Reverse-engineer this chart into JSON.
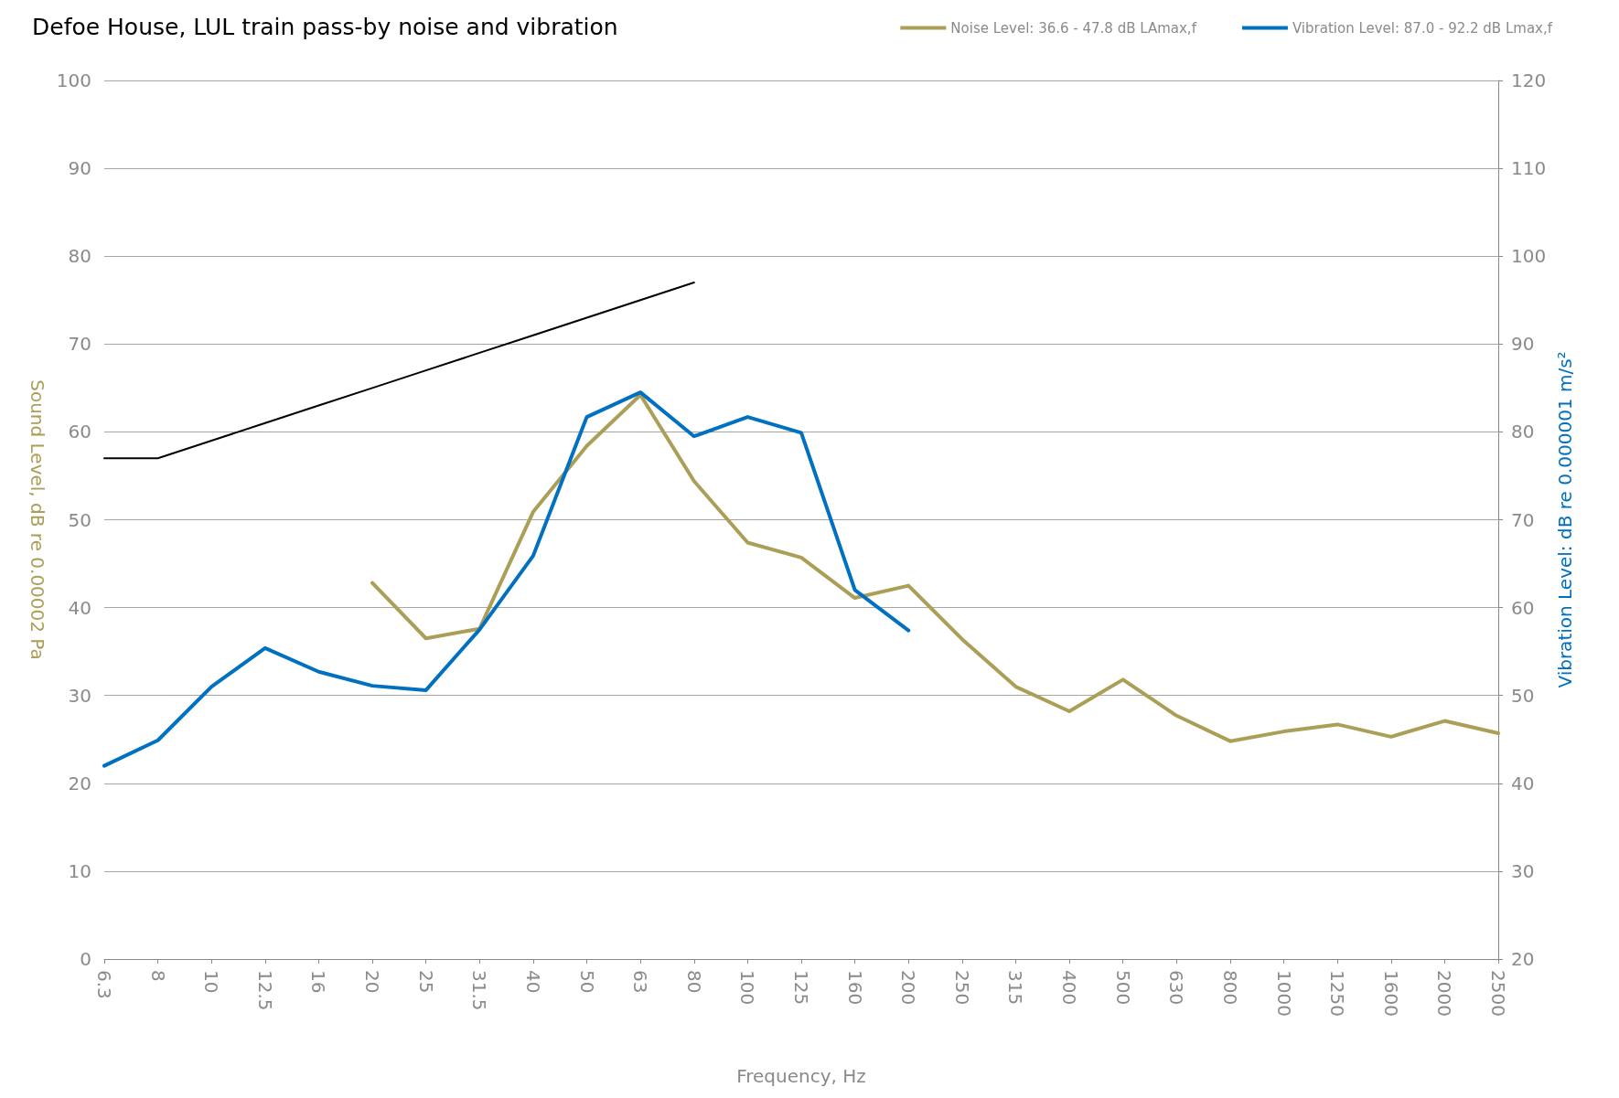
{
  "chart_data": {
    "type": "line",
    "title": "Defoe House, LUL train pass-by noise and vibration",
    "xlabel": "Frequency, Hz",
    "ylabel": "Sound Level, dB re 0.00002 Pa",
    "y2label": "Vibration Level: dB re 0.000001 m/s²",
    "categories": [
      "6.3",
      "8",
      "10",
      "12.5",
      "16",
      "20",
      "25",
      "31.5",
      "40",
      "50",
      "63",
      "80",
      "100",
      "125",
      "160",
      "200",
      "250",
      "315",
      "400",
      "500",
      "630",
      "800",
      "1000",
      "1250",
      "1600",
      "2000",
      "2500"
    ],
    "series": [
      {
        "name": "Noise Level: 36.6 - 47.8 dB LAmax,f",
        "color": "#ab9f58",
        "values": [
          null,
          null,
          null,
          null,
          null,
          42.8,
          36.5,
          37.6,
          50.9,
          58.4,
          64.2,
          54.4,
          47.4,
          45.7,
          41.1,
          42.5,
          36.4,
          31.0,
          28.2,
          31.8,
          27.7,
          24.8,
          25.9,
          26.7,
          25.3,
          27.1,
          25.7
        ]
      },
      {
        "name": "Vibration Level: 87.0 - 92.2 dB Lmax,f",
        "color": "#0070c0",
        "axis": "y2",
        "values": [
          42.0,
          44.9,
          51.0,
          55.4,
          52.7,
          51.1,
          50.6,
          57.5,
          65.9,
          81.7,
          84.5,
          79.5,
          81.7,
          79.9,
          62.0,
          57.4,
          null,
          null,
          null,
          null,
          null,
          null,
          null,
          null,
          null,
          null,
          null
        ]
      },
      {
        "color": "#000000",
        "axis": "y2",
        "values": [
          77,
          77,
          79,
          81,
          83,
          85,
          87,
          89,
          91,
          93,
          95,
          97,
          null,
          null,
          null,
          null,
          null,
          null,
          null,
          null,
          null,
          null,
          null,
          null,
          null,
          null,
          null
        ]
      }
    ],
    "ylim": [
      0,
      100
    ],
    "yticks": [
      0,
      10,
      20,
      30,
      40,
      50,
      60,
      70,
      80,
      90,
      100
    ],
    "y2lim": [
      20,
      120
    ],
    "y2ticks": [
      20,
      30,
      40,
      50,
      60,
      70,
      80,
      90,
      100,
      110,
      120
    ],
    "grid": "y",
    "legend": "top right",
    "marker": "none",
    "line_style": "solid"
  }
}
